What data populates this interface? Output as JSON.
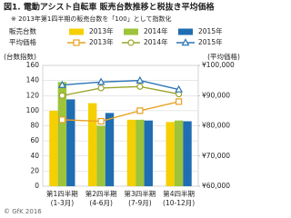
{
  "chart_data": {
    "type": "bar",
    "title": "図1. 電動アシスト自転車 販売台数推移と税抜き平均価格",
    "subtitle": "※ 2013年第1四半期の販売台数を「100」として指数化",
    "ylabel": "(台数指数)",
    "y2label": "(平均価格)",
    "legend_groups": [
      "販売台数",
      "平均価格"
    ],
    "categories": [
      [
        "第1四半期",
        "(1-3月)"
      ],
      [
        "第2四半期",
        "(4-6月)"
      ],
      [
        "第3四半期",
        "(7-9月)"
      ],
      [
        "第4四半期",
        "(10-12月)"
      ]
    ],
    "series": [
      {
        "name": "2013年",
        "type": "bar",
        "group": 0,
        "color": "#f5cf00",
        "values": [
          100,
          110,
          88,
          85
        ]
      },
      {
        "name": "2014年",
        "type": "bar",
        "group": 0,
        "color": "#9dc43a",
        "values": [
          138,
          80,
          88,
          87
        ]
      },
      {
        "name": "2015年",
        "type": "bar",
        "group": 0,
        "color": "#1f6db3",
        "values": [
          115,
          97,
          87,
          86
        ]
      },
      {
        "name": "2013年",
        "type": "line",
        "group": 1,
        "axis": "y2",
        "marker": "square",
        "color": "#e8a020",
        "values": [
          82000,
          81500,
          85000,
          88000
        ]
      },
      {
        "name": "2014年",
        "type": "line",
        "group": 1,
        "axis": "y2",
        "marker": "circle",
        "color": "#9aa52a",
        "values": [
          90000,
          92500,
          93000,
          90500
        ]
      },
      {
        "name": "2015年",
        "type": "line",
        "group": 1,
        "axis": "y2",
        "marker": "triangle",
        "color": "#2e75b6",
        "values": [
          93500,
          94500,
          95000,
          92000
        ]
      }
    ],
    "ylim": [
      0,
      160
    ],
    "yticks": [
      0,
      20,
      40,
      60,
      80,
      100,
      120,
      140,
      160
    ],
    "y2lim": [
      60000,
      100000
    ],
    "y2ticks": [
      {
        "value": 60000,
        "label": "¥60,000"
      },
      {
        "value": 70000,
        "label": "¥70,000"
      },
      {
        "value": 80000,
        "label": "¥80,000"
      },
      {
        "value": 90000,
        "label": "¥90,000"
      },
      {
        "value": 100000,
        "label": "¥100,000"
      }
    ],
    "grid": true,
    "footer": "© GfK 2016"
  }
}
